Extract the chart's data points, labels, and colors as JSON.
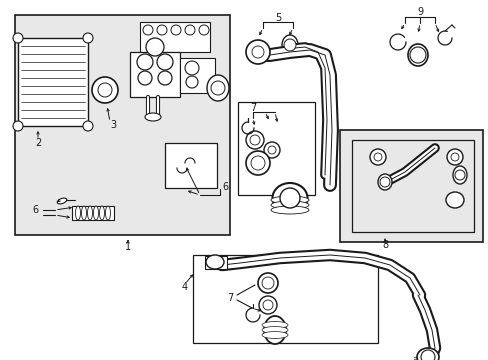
{
  "bg_color": "#ffffff",
  "line_color": "#1a1a1a",
  "gray_fill": "#e8e8e8",
  "figsize": [
    4.89,
    3.6
  ],
  "dpi": 100
}
